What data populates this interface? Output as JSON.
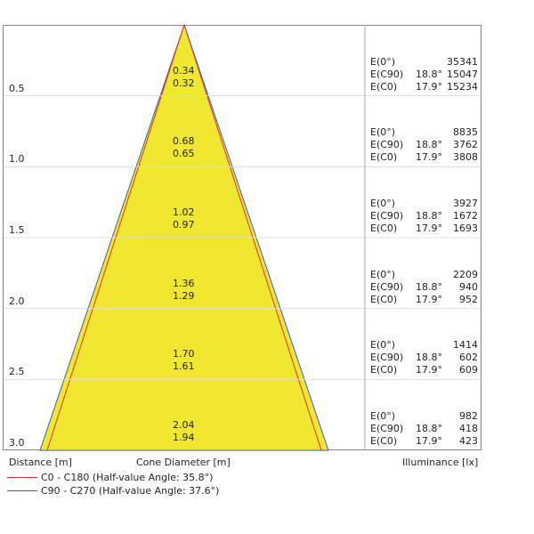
{
  "chart_data": {
    "type": "cone-diagram",
    "xlabel": "Distance [m]",
    "center_label": "Cone Diameter [m]",
    "right_label": "Illuminance [lx]",
    "legend": [
      {
        "label": "C0 - C180 (Half-value Angle: 35.8°)",
        "color": "#e03030"
      },
      {
        "label": "C90 - C270 (Half-value Angle: 37.6°)",
        "color": "#3060c0"
      }
    ],
    "fill_color": "#f0e830",
    "rows": [
      {
        "distance": "0.5",
        "d_c90": "0.34",
        "d_c0": "0.32",
        "e0_label": "E(0°)",
        "e0": "35341",
        "ec90_label": "E(C90)",
        "a_c90": "18.8°",
        "ec90": "15047",
        "ec0_label": "E(C0)",
        "a_c0": "17.9°",
        "ec0": "15234"
      },
      {
        "distance": "1.0",
        "d_c90": "0.68",
        "d_c0": "0.65",
        "e0_label": "E(0°)",
        "e0": "8835",
        "ec90_label": "E(C90)",
        "a_c90": "18.8°",
        "ec90": "3762",
        "ec0_label": "E(C0)",
        "a_c0": "17.9°",
        "ec0": "3808"
      },
      {
        "distance": "1.5",
        "d_c90": "1.02",
        "d_c0": "0.97",
        "e0_label": "E(0°)",
        "e0": "3927",
        "ec90_label": "E(C90)",
        "a_c90": "18.8°",
        "ec90": "1672",
        "ec0_label": "E(C0)",
        "a_c0": "17.9°",
        "ec0": "1693"
      },
      {
        "distance": "2.0",
        "d_c90": "1.36",
        "d_c0": "1.29",
        "e0_label": "E(0°)",
        "e0": "2209",
        "ec90_label": "E(C90)",
        "a_c90": "18.8°",
        "ec90": "940",
        "ec0_label": "E(C0)",
        "a_c0": "17.9°",
        "ec0": "952"
      },
      {
        "distance": "2.5",
        "d_c90": "1.70",
        "d_c0": "1.61",
        "e0_label": "E(0°)",
        "e0": "1414",
        "ec90_label": "E(C90)",
        "a_c90": "18.8°",
        "ec90": "602",
        "ec0_label": "E(C0)",
        "a_c0": "17.9°",
        "ec0": "609"
      },
      {
        "distance": "3.0",
        "d_c90": "2.04",
        "d_c0": "1.94",
        "e0_label": "E(0°)",
        "e0": "982",
        "ec90_label": "E(C90)",
        "a_c90": "18.8°",
        "ec90": "418",
        "ec0_label": "E(C0)",
        "a_c0": "17.9°",
        "ec0": "423"
      }
    ]
  }
}
